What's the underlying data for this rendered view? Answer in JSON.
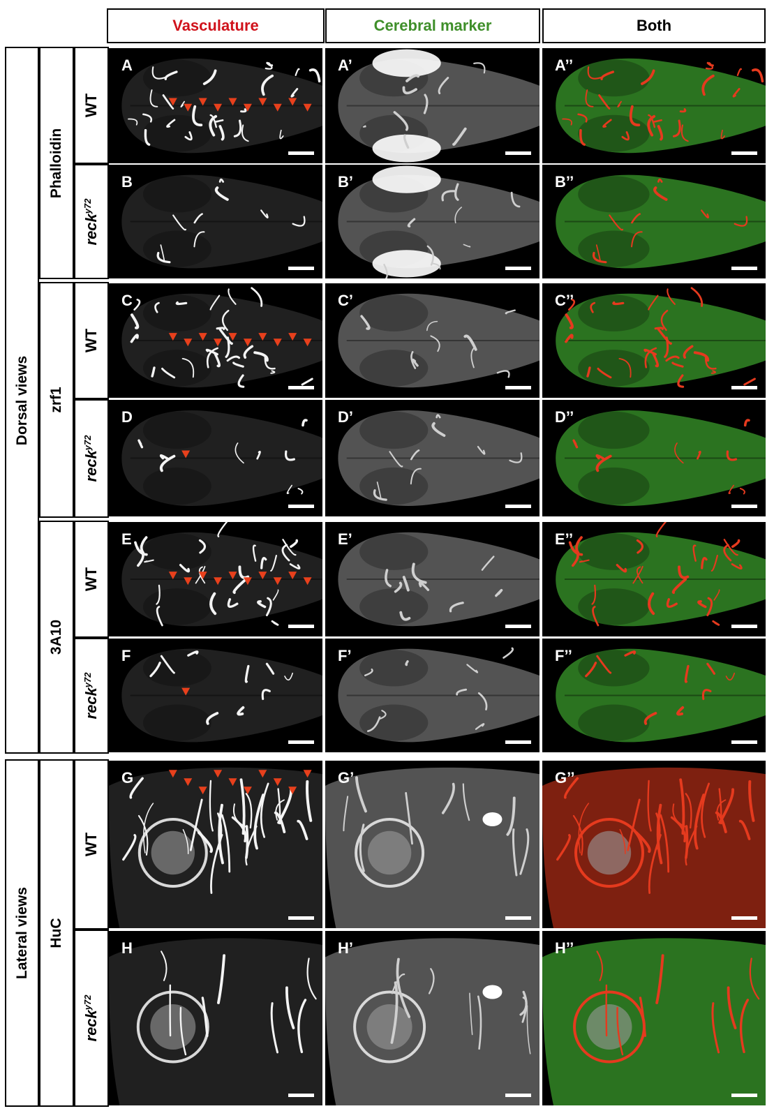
{
  "columns": [
    {
      "label": "Vasculature",
      "color": "#d0121b"
    },
    {
      "label": "Cerebral marker",
      "color": "#3f8f2a"
    },
    {
      "label": "Both",
      "color": "#000000"
    }
  ],
  "groups": [
    {
      "label": "Dorsal views"
    },
    {
      "label": "Lateral views"
    }
  ],
  "markers": [
    {
      "label": "Phalloidin"
    },
    {
      "label": "zrf1"
    },
    {
      "label": "3A10"
    },
    {
      "label": "HuC"
    }
  ],
  "genotypes": {
    "wt": "WT",
    "mutant_base": "reck",
    "mutant_sup": "y72"
  },
  "rows": [
    {
      "labels": [
        "A",
        "A’",
        "A’’"
      ]
    },
    {
      "labels": [
        "B",
        "B’",
        "B’’"
      ]
    },
    {
      "labels": [
        "C",
        "C’",
        "C’’"
      ]
    },
    {
      "labels": [
        "D",
        "D’",
        "D’’"
      ]
    },
    {
      "labels": [
        "E",
        "E’",
        "E’’"
      ]
    },
    {
      "labels": [
        "F",
        "F’",
        "F’’"
      ]
    },
    {
      "labels": [
        "G",
        "G’",
        "G’’"
      ]
    },
    {
      "labels": [
        "H",
        "H’",
        "H’’"
      ]
    }
  ],
  "colors": {
    "arrowhead": "#e8401c",
    "vessel_red": "#e53a1e",
    "tissue_green": "#4fd23a",
    "grayscale": "#ffffff"
  }
}
